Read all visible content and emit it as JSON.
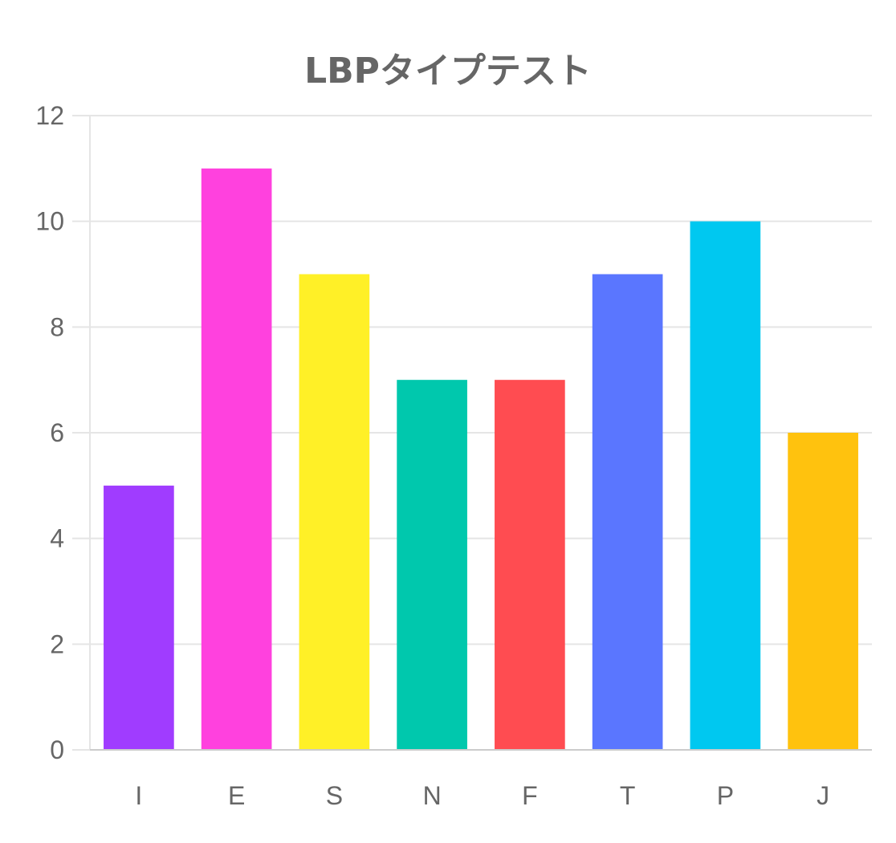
{
  "chart_data": {
    "type": "bar",
    "title": "LBPタイプテスト",
    "xlabel": "",
    "ylabel": "",
    "categories": [
      "I",
      "E",
      "S",
      "N",
      "F",
      "T",
      "P",
      "J"
    ],
    "values": [
      5,
      11,
      9,
      7,
      7,
      9,
      10,
      6
    ],
    "colors": [
      "#a03cff",
      "#ff41de",
      "#fff027",
      "#00c8ad",
      "#ff4c51",
      "#5a76ff",
      "#00c8f0",
      "#ffc20e"
    ],
    "ylim": [
      0,
      12
    ],
    "yticks": [
      0,
      2,
      4,
      6,
      8,
      10,
      12
    ],
    "grid": true,
    "legend": "none"
  }
}
